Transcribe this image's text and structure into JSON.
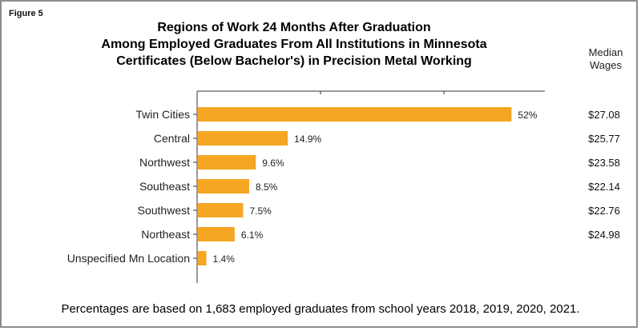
{
  "figure_label": "Figure 5",
  "title_lines": [
    "Regions of Work 24 Months After Graduation",
    "Among Employed Graduates From All Institutions in Minnesota",
    "Certificates (Below Bachelor's) in Precision Metal Working"
  ],
  "median_header_lines": [
    "Median",
    "Wages"
  ],
  "footnote": "Percentages are based on 1,683 employed graduates from school years 2018, 2019, 2020, 2021.",
  "colors": {
    "bar": "#f5a623",
    "axis": "#333333"
  },
  "chart_data": {
    "type": "bar",
    "orientation": "horizontal",
    "categories": [
      "Twin Cities",
      "Central",
      "Northwest",
      "Southeast",
      "Southwest",
      "Northeast",
      "Unspecified Mn Location"
    ],
    "values": [
      52,
      14.9,
      9.6,
      8.5,
      7.5,
      6.1,
      1.4
    ],
    "value_labels": [
      "52%",
      "14.9%",
      "9.6%",
      "8.5%",
      "7.5%",
      "6.1%",
      "1.4%"
    ],
    "median_wages": [
      "$27.08",
      "$25.77",
      "$23.58",
      "$22.14",
      "$22.76",
      "$24.98",
      ""
    ],
    "xlim": [
      0,
      55
    ],
    "grid": false,
    "legend": "none"
  }
}
